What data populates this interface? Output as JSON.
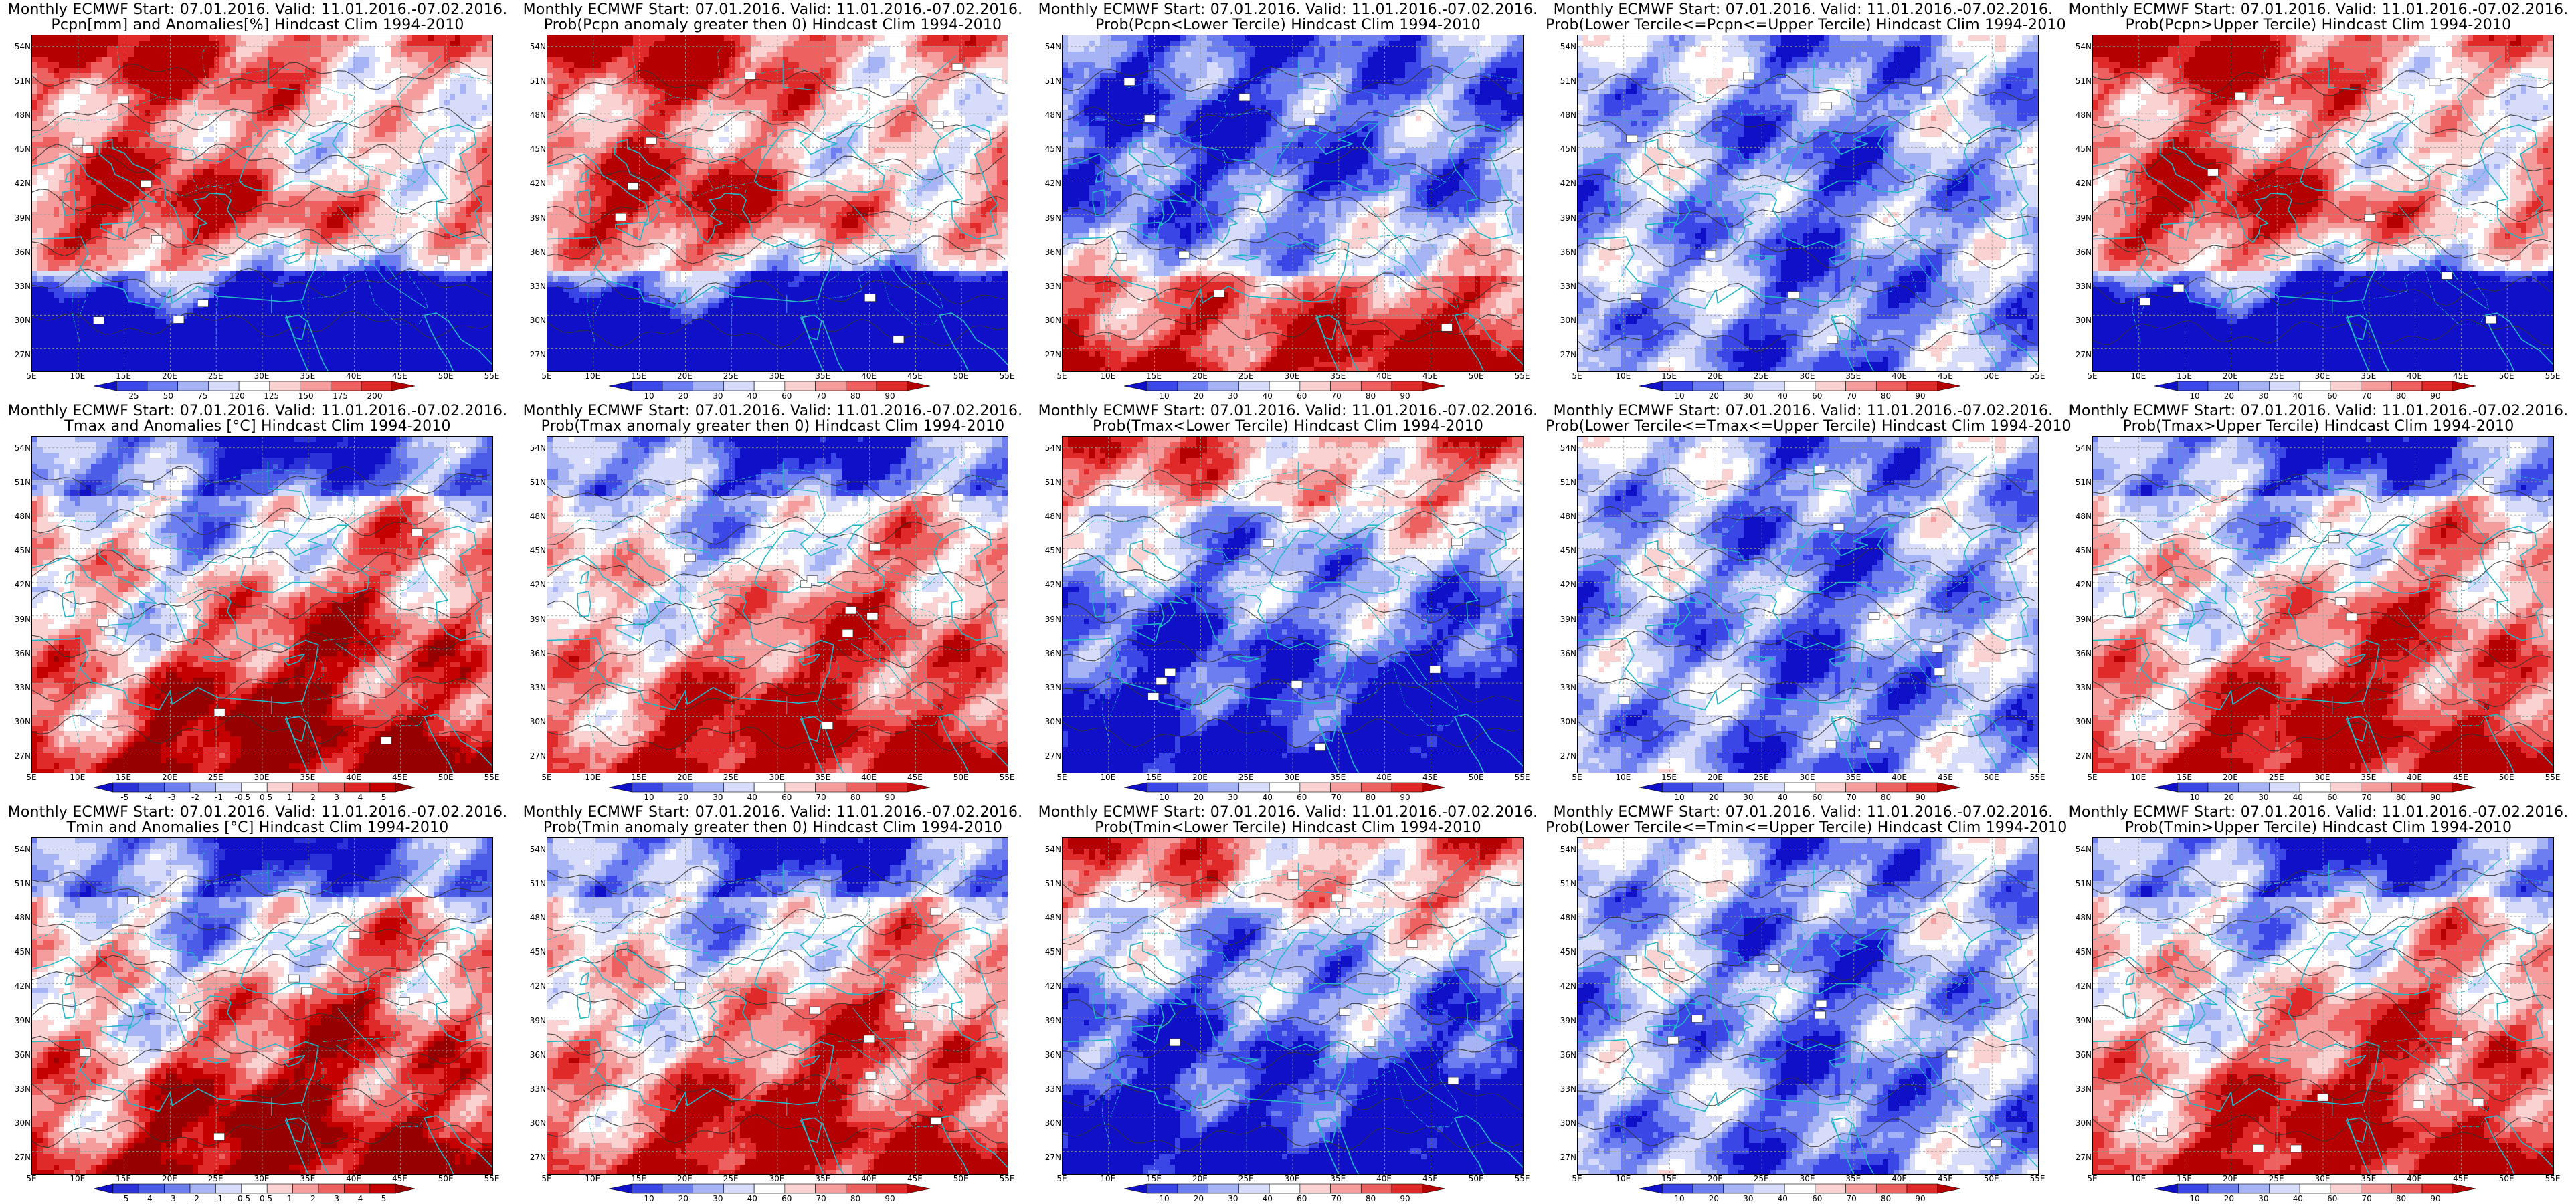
{
  "figure": {
    "panels": [
      {
        "title1": "Monthly ECMWF Start: 07.01.2016. Valid: 11.01.2016.-07.02.2016.",
        "title2": "Pcpn[mm] and Anomalies[%] Hindcast Clim 1994-2010",
        "pattern": "pcpn_anom",
        "scale": "anom_pcpn",
        "colorbar": "pcpn_pct"
      },
      {
        "title1": "Monthly ECMWF Start: 07.01.2016. Valid: 11.01.2016.-07.02.2016.",
        "title2": "Prob(Pcpn anomaly greater then 0) Hindcast Clim 1994-2010",
        "pattern": "pcpn_anom",
        "scale": "prob",
        "colorbar": "prob"
      },
      {
        "title1": "Monthly ECMWF Start: 07.01.2016. Valid: 11.01.2016.-07.02.2016.",
        "title2": "Prob(Pcpn<Lower Tercile) Hindcast Clim 1994-2010",
        "pattern": "pcpn_lower",
        "scale": "prob",
        "colorbar": "prob"
      },
      {
        "title1": "Monthly ECMWF Start: 07.01.2016. Valid: 11.01.2016.-07.02.2016.",
        "title2": "Prob(Lower Tercile<=Pcpn<=Upper Tercile) Hindcast Clim 1994-2010",
        "pattern": "middle",
        "scale": "prob",
        "colorbar": "prob"
      },
      {
        "title1": "Monthly ECMWF Start: 07.01.2016. Valid: 11.01.2016.-07.02.2016.",
        "title2": "Prob(Pcpn>Upper Tercile) Hindcast Clim 1994-2010",
        "pattern": "pcpn_anom",
        "scale": "prob",
        "colorbar": "prob"
      },
      {
        "title1": "Monthly ECMWF Start: 07.01.2016. Valid: 11.01.2016.-07.02.2016.",
        "title2": "Tmax and Anomalies [°C] Hindcast Clim 1994-2010",
        "pattern": "temp_anom",
        "scale": "anom_temp",
        "colorbar": "temp_anom"
      },
      {
        "title1": "Monthly ECMWF Start: 07.01.2016. Valid: 11.01.2016.-07.02.2016.",
        "title2": "Prob(Tmax anomaly greater then 0) Hindcast Clim 1994-2010",
        "pattern": "temp_anom",
        "scale": "prob",
        "colorbar": "prob"
      },
      {
        "title1": "Monthly ECMWF Start: 07.01.2016. Valid: 11.01.2016.-07.02.2016.",
        "title2": "Prob(Tmax<Lower Tercile) Hindcast Clim 1994-2010",
        "pattern": "temp_lower",
        "scale": "prob",
        "colorbar": "prob"
      },
      {
        "title1": "Monthly ECMWF Start: 07.01.2016. Valid: 11.01.2016.-07.02.2016.",
        "title2": "Prob(Lower Tercile<=Tmax<=Upper Tercile) Hindcast Clim 1994-2010",
        "pattern": "middle",
        "scale": "prob",
        "colorbar": "prob"
      },
      {
        "title1": "Monthly ECMWF Start: 07.01.2016. Valid: 11.01.2016.-07.02.2016.",
        "title2": "Prob(Tmax>Upper Tercile) Hindcast Clim 1994-2010",
        "pattern": "temp_anom",
        "scale": "prob",
        "colorbar": "prob"
      },
      {
        "title1": "Monthly ECMWF Start: 07.01.2016. Valid: 11.01.2016.-07.02.2016.",
        "title2": "Tmin and Anomalies [°C] Hindcast Clim 1994-2010",
        "pattern": "temp_anom",
        "scale": "anom_temp",
        "colorbar": "temp_anom"
      },
      {
        "title1": "Monthly ECMWF Start: 07.01.2016. Valid: 11.01.2016.-07.02.2016.",
        "title2": "Prob(Tmin anomaly greater then 0) Hindcast Clim 1994-2010",
        "pattern": "temp_anom",
        "scale": "prob",
        "colorbar": "prob"
      },
      {
        "title1": "Monthly ECMWF Start: 07.01.2016. Valid: 11.01.2016.-07.02.2016.",
        "title2": "Prob(Tmin<Lower Tercile) Hindcast Clim 1994-2010",
        "pattern": "temp_lower",
        "scale": "prob",
        "colorbar": "prob"
      },
      {
        "title1": "Monthly ECMWF Start: 07.01.2016. Valid: 11.01.2016.-07.02.2016.",
        "title2": "Prob(Lower Tercile<=Tmin<=Upper Tercile) Hindcast Clim 1994-2010",
        "pattern": "middle",
        "scale": "prob",
        "colorbar": "prob"
      },
      {
        "title1": "Monthly ECMWF Start: 07.01.2016. Valid: 11.01.2016.-07.02.2016.",
        "title2": "Prob(Tmin>Upper Tercile) Hindcast Clim 1994-2010",
        "pattern": "temp_anom",
        "scale": "prob",
        "colorbar": "prob"
      }
    ],
    "lat_labels": [
      "54N",
      "51N",
      "48N",
      "45N",
      "42N",
      "39N",
      "36N",
      "33N",
      "30N",
      "27N"
    ],
    "lon_labels": [
      "5E",
      "10E",
      "15E",
      "20E",
      "25E",
      "30E",
      "35E",
      "40E",
      "45E",
      "50E",
      "55E"
    ],
    "lat_range": [
      25,
      55
    ],
    "lon_range": [
      5,
      55
    ],
    "colorbars": {
      "pcpn_pct": {
        "ticks": [
          "25",
          "50",
          "75",
          "120",
          "125",
          "150",
          "175",
          "200"
        ],
        "colors": [
          "#1010c8",
          "#3a46e6",
          "#6d7ef0",
          "#a6b4f6",
          "#d6dcfa",
          "#ffffff",
          "#fad2d2",
          "#f59c9c",
          "#ee6161",
          "#e02a2a",
          "#b40000"
        ]
      },
      "prob": {
        "ticks": [
          "10",
          "20",
          "30",
          "40",
          "60",
          "70",
          "80",
          "90"
        ],
        "colors": [
          "#1010c8",
          "#3a46e6",
          "#6d7ef0",
          "#a6b4f6",
          "#d6dcfa",
          "#ffffff",
          "#fad2d2",
          "#f59c9c",
          "#ee6161",
          "#e02a2a",
          "#b40000"
        ]
      },
      "temp_anom": {
        "ticks": [
          "-5",
          "-4",
          "-3",
          "-2",
          "-1",
          "-0.5",
          "0.5",
          "1",
          "2",
          "3",
          "4",
          "5"
        ],
        "colors": [
          "#1010c8",
          "#2a32d8",
          "#4b5ce6",
          "#6d7ef0",
          "#a6b4f6",
          "#d6dcfa",
          "#ffffff",
          "#fad2d2",
          "#f59c9c",
          "#ee6161",
          "#e02a2a",
          "#c40000",
          "#960000"
        ]
      }
    },
    "colors": {
      "coast": "#22b8c8",
      "contour": "#333333",
      "grid": "#9a9a9a"
    }
  }
}
